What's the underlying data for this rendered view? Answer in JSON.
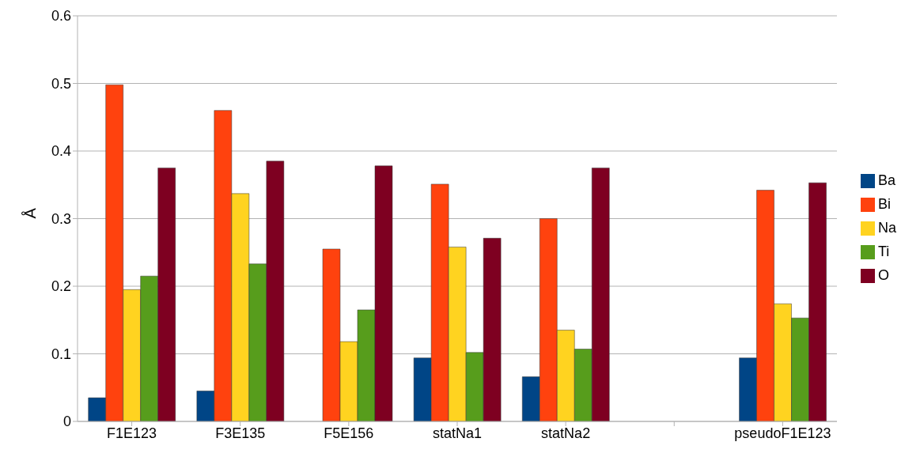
{
  "chart_data": {
    "type": "bar",
    "ylabel": "Å",
    "categories": [
      "F1E123",
      "F3E135",
      "F5E156",
      "statNa1",
      "statNa2",
      null,
      "pseudoF1E123"
    ],
    "series": [
      {
        "name": "Ba",
        "color": "#004586",
        "values": [
          0.035,
          0.045,
          null,
          0.094,
          0.066,
          null,
          0.094
        ]
      },
      {
        "name": "Bi",
        "color": "#ff420e",
        "values": [
          0.498,
          0.46,
          0.255,
          0.351,
          0.3,
          null,
          0.342
        ]
      },
      {
        "name": "Na",
        "color": "#ffd320",
        "values": [
          0.195,
          0.337,
          0.118,
          0.258,
          0.135,
          null,
          0.174
        ]
      },
      {
        "name": "Ti",
        "color": "#579d1c",
        "values": [
          0.215,
          0.233,
          0.165,
          0.102,
          0.107,
          null,
          0.153
        ]
      },
      {
        "name": "O",
        "color": "#7e0021",
        "values": [
          0.375,
          0.385,
          0.378,
          0.271,
          0.375,
          null,
          0.353
        ]
      }
    ],
    "ylim": [
      0,
      0.6
    ],
    "yticks": [
      0,
      0.1,
      0.2,
      0.3,
      0.4,
      0.5,
      0.6
    ],
    "grid": "y",
    "legend": "right"
  }
}
